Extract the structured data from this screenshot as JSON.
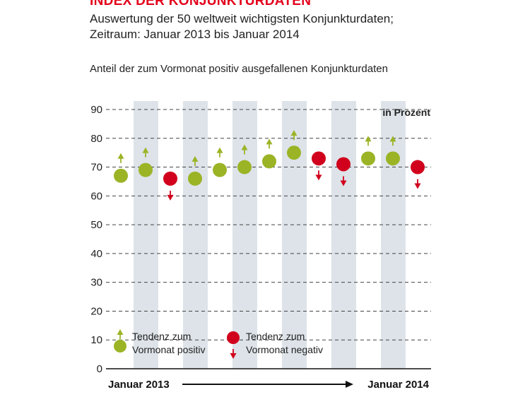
{
  "header": {
    "title": "INDEX DER KONJUNKTURDATEN",
    "subtitle_line1": "Auswertung der 50 weltweit wichtigsten Konjunkturdaten;",
    "subtitle_line2": "Zeitraum: Januar 2013 bis Januar 2014",
    "caption": "Anteil der zum Vormonat positiv ausgefallenen Konjunkturdaten"
  },
  "colors": {
    "positive": "#9bb426",
    "negative": "#d1001c",
    "band": "#dde3e9",
    "grid": "#444444"
  },
  "chart_data": {
    "type": "scatter",
    "title": "Anteil der zum Vormonat positiv ausgefallenen Konjunkturdaten",
    "unit_label": "in Prozent",
    "ylim": [
      0,
      90
    ],
    "yticks": [
      0,
      10,
      20,
      30,
      40,
      50,
      60,
      70,
      80,
      90
    ],
    "grid": true,
    "alternating_bands": true,
    "x_start_label": "Januar 2013",
    "x_end_label": "Januar 2014",
    "values": [
      67,
      69,
      66,
      66,
      69,
      70,
      72,
      75,
      73,
      71,
      73,
      73,
      70
    ],
    "trend": [
      "positive",
      "positive",
      "negative",
      "positive",
      "positive",
      "positive",
      "positive",
      "positive",
      "negative",
      "negative",
      "positive",
      "positive",
      "negative"
    ],
    "legend": [
      {
        "key": "positive",
        "line1": "Tendenz zum",
        "line2": "Vormonat positiv"
      },
      {
        "key": "negative",
        "line1": "Tendenz zum",
        "line2": "Vormonat negativ"
      }
    ],
    "legend_position": "bottom-left"
  }
}
